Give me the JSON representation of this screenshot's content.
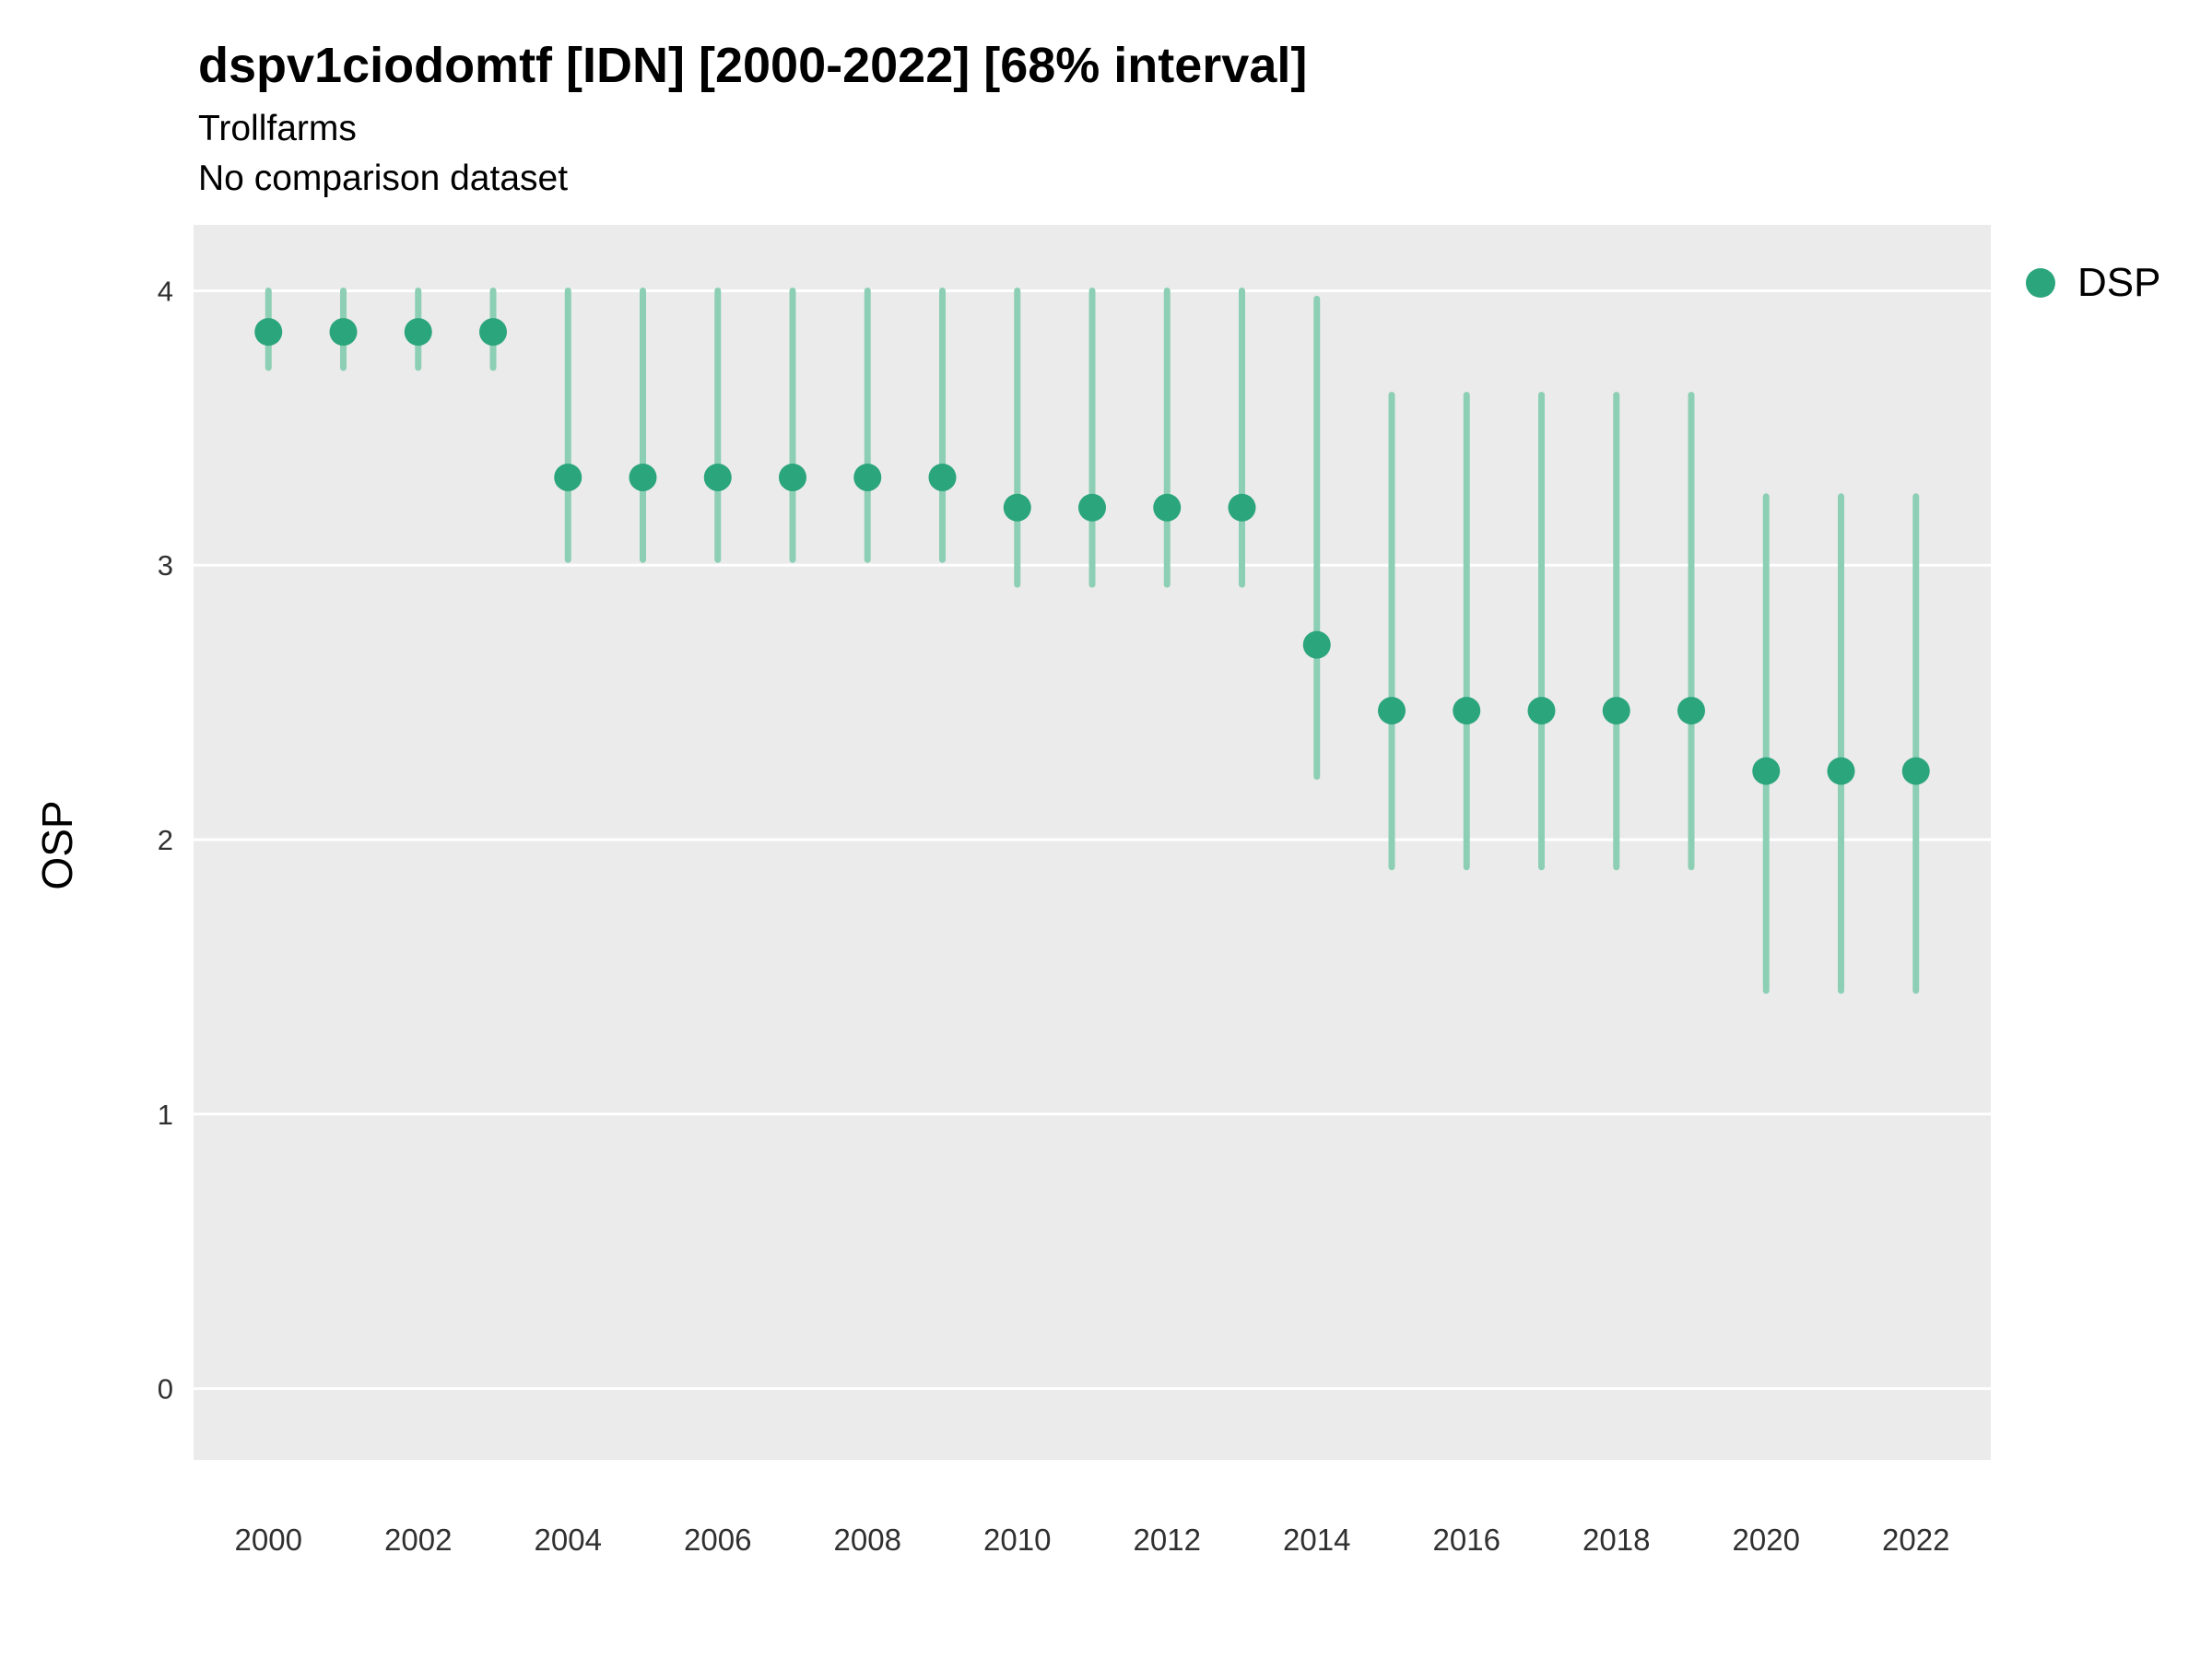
{
  "header": {
    "title": "dspv1ciodomtf [IDN] [2000-2022] [68% interval]",
    "subtitle": "Trollfarms",
    "note": "No comparison dataset"
  },
  "legend": {
    "label": "DSP"
  },
  "colors": {
    "point": "#2BA57C",
    "interval": "#8CCFB5",
    "plot_bg": "#EBEBEB",
    "grid": "#FFFFFF",
    "tick_text": "#303030"
  },
  "chart_data": {
    "type": "scatter",
    "title": "dspv1ciodomtf [IDN] [2000-2022] [68% interval]",
    "subtitle": "Trollfarms",
    "note": "No comparison dataset",
    "interval_label": "68% interval",
    "xlabel": "",
    "ylabel": "OSP",
    "legend_position": "right",
    "legend_entries": [
      "DSP"
    ],
    "grid": "major-horizontal",
    "ylim": [
      -0.26,
      4.24
    ],
    "xlim": [
      1999,
      2023
    ],
    "yticks": [
      0,
      1,
      2,
      3,
      4
    ],
    "xticks": [
      2000,
      2002,
      2004,
      2006,
      2008,
      2010,
      2012,
      2014,
      2016,
      2018,
      2020,
      2022
    ],
    "series": [
      {
        "name": "DSP",
        "x": [
          2000,
          2001,
          2002,
          2003,
          2004,
          2005,
          2006,
          2007,
          2008,
          2009,
          2010,
          2011,
          2012,
          2013,
          2014,
          2015,
          2016,
          2017,
          2018,
          2019,
          2020,
          2021,
          2022
        ],
        "y": [
          3.85,
          3.85,
          3.85,
          3.85,
          3.32,
          3.32,
          3.32,
          3.32,
          3.32,
          3.32,
          3.21,
          3.21,
          3.21,
          3.21,
          2.71,
          2.47,
          2.47,
          2.47,
          2.47,
          2.47,
          2.25,
          2.25,
          2.25
        ],
        "lo": [
          3.72,
          3.72,
          3.72,
          3.72,
          3.02,
          3.02,
          3.02,
          3.02,
          3.02,
          3.02,
          2.93,
          2.93,
          2.93,
          2.93,
          2.23,
          1.9,
          1.9,
          1.9,
          1.9,
          1.9,
          1.45,
          1.45,
          1.45
        ],
        "hi": [
          4.0,
          4.0,
          4.0,
          4.0,
          4.0,
          4.0,
          4.0,
          4.0,
          4.0,
          4.0,
          4.0,
          4.0,
          4.0,
          4.0,
          3.97,
          3.62,
          3.62,
          3.62,
          3.62,
          3.62,
          3.25,
          3.25,
          3.25
        ]
      }
    ]
  }
}
